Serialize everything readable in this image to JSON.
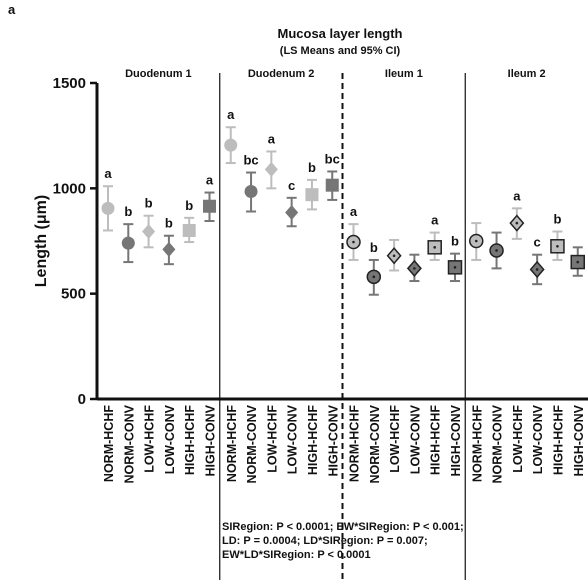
{
  "chart_data": {
    "type": "errorbar",
    "panel_label": "a",
    "title": "Mucosa layer length",
    "subtitle": "(LS Means and 95% CI)",
    "y_label": "Length (μm)",
    "categories": [
      "Duodenum 1",
      "Duodenum 2",
      "Ileum 1",
      "Ileum 2"
    ],
    "category_styles": [
      "solid",
      "solid",
      "dotted",
      "dotted"
    ],
    "dividers": [
      "solid",
      "dashed",
      "solid"
    ],
    "ylim": [
      0,
      1500
    ],
    "yticks": [
      0,
      500,
      1000,
      1500
    ],
    "series": [
      {
        "name": "NORM-HCHF",
        "color": "#bdbdbd",
        "marker": "circle",
        "values": [
          905,
          1205,
          745,
          750
        ],
        "ci_low": [
          800,
          1120,
          660,
          660
        ],
        "ci_high": [
          1010,
          1290,
          830,
          835
        ],
        "letters": [
          "a",
          "a",
          "a",
          null
        ]
      },
      {
        "name": "NORM-CONV",
        "color": "#767676",
        "marker": "circle",
        "values": [
          740,
          985,
          580,
          705
        ],
        "ci_low": [
          650,
          890,
          495,
          620
        ],
        "ci_high": [
          830,
          1075,
          660,
          790
        ],
        "letters": [
          "b",
          "bc",
          "b",
          null
        ]
      },
      {
        "name": "LOW-HCHF",
        "color": "#bdbdbd",
        "marker": "diamond",
        "values": [
          795,
          1090,
          680,
          835
        ],
        "ci_low": [
          720,
          1000,
          610,
          760
        ],
        "ci_high": [
          870,
          1175,
          755,
          905
        ],
        "letters": [
          "b",
          "a",
          null,
          "a"
        ]
      },
      {
        "name": "LOW-CONV",
        "color": "#767676",
        "marker": "diamond",
        "values": [
          710,
          885,
          620,
          615
        ],
        "ci_low": [
          640,
          820,
          560,
          545
        ],
        "ci_high": [
          775,
          955,
          685,
          685
        ],
        "letters": [
          "b",
          "c",
          null,
          "c"
        ]
      },
      {
        "name": "HIGH-HCHF",
        "color": "#bdbdbd",
        "marker": "square",
        "values": [
          800,
          970,
          720,
          725
        ],
        "ci_low": [
          745,
          900,
          660,
          660
        ],
        "ci_high": [
          860,
          1040,
          790,
          795
        ],
        "letters": [
          "b",
          "b",
          "a",
          "b"
        ]
      },
      {
        "name": "HIGH-CONV",
        "color": "#767676",
        "marker": "square",
        "values": [
          915,
          1015,
          625,
          650
        ],
        "ci_low": [
          845,
          945,
          560,
          585
        ],
        "ci_high": [
          980,
          1080,
          690,
          720
        ],
        "letters": [
          "a",
          "bc",
          "b",
          null
        ]
      }
    ],
    "footnote": [
      "SIRegion: P < 0.0001; EW*SIRegion: P <  0.001;",
      "LD: P = 0.0004; LD*SIRegion: P = 0.007;",
      "EW*LD*SIRegion: P < 0.0001"
    ]
  }
}
